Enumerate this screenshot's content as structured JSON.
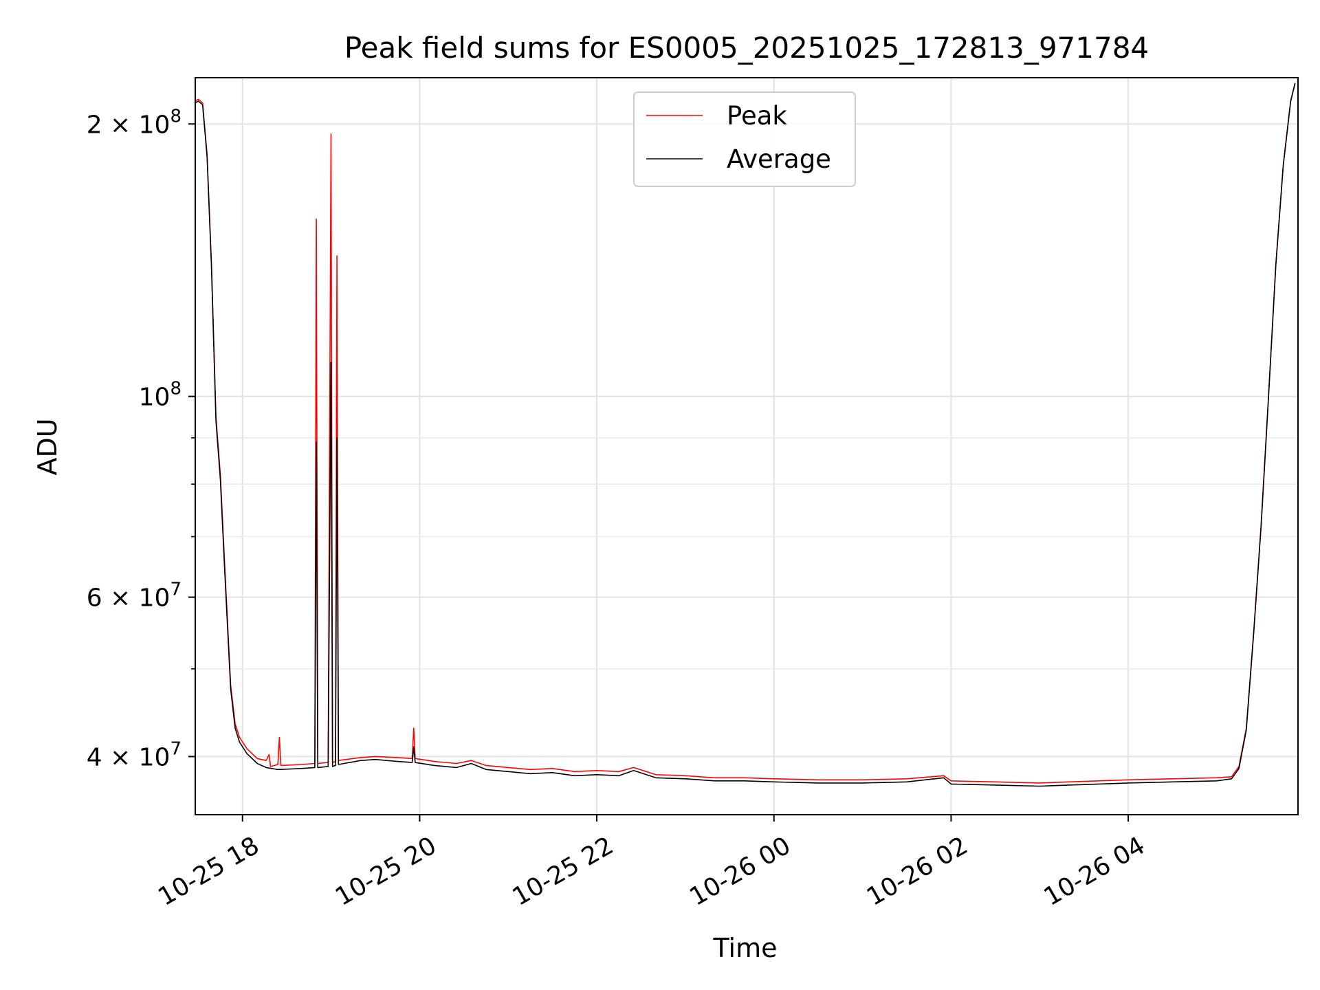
{
  "chart_data": {
    "type": "line",
    "title": "Peak field sums for ES0005_20251025_172813_971784",
    "xlabel": "Time",
    "ylabel": "ADU",
    "y_scale": "log",
    "ylim": [
      34500000,
      225000000
    ],
    "xlim": [
      "2025-10-25 17:28",
      "2025-10-26 05:55"
    ],
    "grid": true,
    "legend": {
      "position": "top-center",
      "entries": [
        "Peak",
        "Average"
      ]
    },
    "x_ticks": [
      {
        "label": "10-25 18",
        "value": "2025-10-25 18:00"
      },
      {
        "label": "10-25 20",
        "value": "2025-10-25 20:00"
      },
      {
        "label": "10-25 22",
        "value": "2025-10-25 22:00"
      },
      {
        "label": "10-26 00",
        "value": "2025-10-26 00:00"
      },
      {
        "label": "10-26 02",
        "value": "2025-10-26 02:00"
      },
      {
        "label": "10-26 04",
        "value": "2025-10-26 04:00"
      }
    ],
    "y_ticks": [
      {
        "base": "2 × 10",
        "exp": "8",
        "value": 200000000
      },
      {
        "base": "10",
        "exp": "8",
        "value": 100000000
      },
      {
        "base": "6 × 10",
        "exp": "7",
        "value": 60000000
      },
      {
        "base": "4 × 10",
        "exp": "7",
        "value": 40000000
      }
    ],
    "y_minor_ticks": [
      50000000,
      70000000,
      80000000,
      90000000,
      300000000
    ],
    "series": [
      {
        "name": "Peak",
        "color": "#ff0000",
        "points": [
          [
            "2025-10-25 17:28",
            212000000
          ],
          [
            "2025-10-25 17:30",
            213000000
          ],
          [
            "2025-10-25 17:33",
            211000000
          ],
          [
            "2025-10-25 17:36",
            185000000
          ],
          [
            "2025-10-25 17:39",
            140000000
          ],
          [
            "2025-10-25 17:42",
            95000000
          ],
          [
            "2025-10-25 17:45",
            82000000
          ],
          [
            "2025-10-25 17:48",
            65000000
          ],
          [
            "2025-10-25 17:52",
            48000000
          ],
          [
            "2025-10-25 17:55",
            43500000
          ],
          [
            "2025-10-25 17:58",
            42000000
          ],
          [
            "2025-10-25 18:03",
            40800000
          ],
          [
            "2025-10-25 18:10",
            39800000
          ],
          [
            "2025-10-25 18:16",
            39600000
          ],
          [
            "2025-10-25 18:18",
            40200000
          ],
          [
            "2025-10-25 18:19",
            39000000
          ],
          [
            "2025-10-25 18:24",
            39200000
          ],
          [
            "2025-10-25 18:25",
            42000000
          ],
          [
            "2025-10-25 18:26",
            39100000
          ],
          [
            "2025-10-25 18:40",
            39200000
          ],
          [
            "2025-10-25 18:49",
            39300000
          ],
          [
            "2025-10-25 18:50",
            157000000
          ],
          [
            "2025-10-25 18:51",
            39300000
          ],
          [
            "2025-10-25 18:58",
            39400000
          ],
          [
            "2025-10-25 19:00",
            195000000
          ],
          [
            "2025-10-25 19:01",
            39400000
          ],
          [
            "2025-10-25 19:03",
            39500000
          ],
          [
            "2025-10-25 19:04",
            143000000
          ],
          [
            "2025-10-25 19:05",
            39600000
          ],
          [
            "2025-10-25 19:20",
            39900000
          ],
          [
            "2025-10-25 19:30",
            40000000
          ],
          [
            "2025-10-25 19:45",
            39900000
          ],
          [
            "2025-10-25 19:55",
            39800000
          ],
          [
            "2025-10-25 19:56",
            43000000
          ],
          [
            "2025-10-25 19:57",
            39800000
          ],
          [
            "2025-10-25 20:10",
            39500000
          ],
          [
            "2025-10-25 20:25",
            39300000
          ],
          [
            "2025-10-25 20:35",
            39600000
          ],
          [
            "2025-10-25 20:45",
            39100000
          ],
          [
            "2025-10-25 21:00",
            38900000
          ],
          [
            "2025-10-25 21:15",
            38700000
          ],
          [
            "2025-10-25 21:30",
            38800000
          ],
          [
            "2025-10-25 21:45",
            38500000
          ],
          [
            "2025-10-25 22:00",
            38600000
          ],
          [
            "2025-10-25 22:15",
            38500000
          ],
          [
            "2025-10-25 22:25",
            38900000
          ],
          [
            "2025-10-25 22:40",
            38200000
          ],
          [
            "2025-10-25 23:00",
            38100000
          ],
          [
            "2025-10-25 23:20",
            37900000
          ],
          [
            "2025-10-25 23:40",
            37900000
          ],
          [
            "2025-10-26 00:00",
            37800000
          ],
          [
            "2025-10-26 00:30",
            37700000
          ],
          [
            "2025-10-26 01:00",
            37700000
          ],
          [
            "2025-10-26 01:30",
            37800000
          ],
          [
            "2025-10-26 01:55",
            38100000
          ],
          [
            "2025-10-26 02:00",
            37600000
          ],
          [
            "2025-10-26 02:30",
            37500000
          ],
          [
            "2025-10-26 03:00",
            37400000
          ],
          [
            "2025-10-26 03:20",
            37500000
          ],
          [
            "2025-10-26 03:40",
            37600000
          ],
          [
            "2025-10-26 04:00",
            37700000
          ],
          [
            "2025-10-26 04:30",
            37800000
          ],
          [
            "2025-10-26 05:00",
            37900000
          ],
          [
            "2025-10-26 05:10",
            38000000
          ],
          [
            "2025-10-26 05:15",
            39000000
          ],
          [
            "2025-10-26 05:20",
            43000000
          ],
          [
            "2025-10-26 05:25",
            55000000
          ],
          [
            "2025-10-26 05:30",
            72000000
          ],
          [
            "2025-10-26 05:35",
            100000000
          ],
          [
            "2025-10-26 05:40",
            140000000
          ],
          [
            "2025-10-26 05:45",
            180000000
          ],
          [
            "2025-10-26 05:50",
            212000000
          ],
          [
            "2025-10-26 05:53",
            222000000
          ]
        ]
      },
      {
        "name": "Average",
        "color": "#000000",
        "points": [
          [
            "2025-10-25 17:28",
            211000000
          ],
          [
            "2025-10-25 17:30",
            212000000
          ],
          [
            "2025-10-25 17:33",
            210000000
          ],
          [
            "2025-10-25 17:36",
            184000000
          ],
          [
            "2025-10-25 17:39",
            139000000
          ],
          [
            "2025-10-25 17:42",
            94000000
          ],
          [
            "2025-10-25 17:45",
            81000000
          ],
          [
            "2025-10-25 17:48",
            64000000
          ],
          [
            "2025-10-25 17:52",
            47500000
          ],
          [
            "2025-10-25 17:55",
            43000000
          ],
          [
            "2025-10-25 17:58",
            41500000
          ],
          [
            "2025-10-25 18:03",
            40300000
          ],
          [
            "2025-10-25 18:10",
            39300000
          ],
          [
            "2025-10-25 18:16",
            38900000
          ],
          [
            "2025-10-25 18:24",
            38700000
          ],
          [
            "2025-10-25 18:40",
            38800000
          ],
          [
            "2025-10-25 18:49",
            38900000
          ],
          [
            "2025-10-25 18:50",
            89000000
          ],
          [
            "2025-10-25 18:51",
            38900000
          ],
          [
            "2025-10-25 18:58",
            39000000
          ],
          [
            "2025-10-25 19:00",
            109000000
          ],
          [
            "2025-10-25 19:01",
            39000000
          ],
          [
            "2025-10-25 19:03",
            39100000
          ],
          [
            "2025-10-25 19:04",
            90000000
          ],
          [
            "2025-10-25 19:05",
            39200000
          ],
          [
            "2025-10-25 19:20",
            39600000
          ],
          [
            "2025-10-25 19:30",
            39700000
          ],
          [
            "2025-10-25 19:45",
            39500000
          ],
          [
            "2025-10-25 19:55",
            39400000
          ],
          [
            "2025-10-25 19:56",
            41000000
          ],
          [
            "2025-10-25 19:57",
            39400000
          ],
          [
            "2025-10-25 20:10",
            39100000
          ],
          [
            "2025-10-25 20:25",
            38900000
          ],
          [
            "2025-10-25 20:35",
            39300000
          ],
          [
            "2025-10-25 20:45",
            38700000
          ],
          [
            "2025-10-25 21:00",
            38500000
          ],
          [
            "2025-10-25 21:15",
            38300000
          ],
          [
            "2025-10-25 21:30",
            38400000
          ],
          [
            "2025-10-25 21:45",
            38100000
          ],
          [
            "2025-10-25 22:00",
            38200000
          ],
          [
            "2025-10-25 22:15",
            38100000
          ],
          [
            "2025-10-25 22:25",
            38600000
          ],
          [
            "2025-10-25 22:40",
            37900000
          ],
          [
            "2025-10-25 23:00",
            37800000
          ],
          [
            "2025-10-25 23:20",
            37600000
          ],
          [
            "2025-10-25 23:40",
            37600000
          ],
          [
            "2025-10-26 00:00",
            37500000
          ],
          [
            "2025-10-26 00:30",
            37400000
          ],
          [
            "2025-10-26 01:00",
            37400000
          ],
          [
            "2025-10-26 01:30",
            37500000
          ],
          [
            "2025-10-26 01:55",
            37900000
          ],
          [
            "2025-10-26 02:00",
            37300000
          ],
          [
            "2025-10-26 02:30",
            37200000
          ],
          [
            "2025-10-26 03:00",
            37100000
          ],
          [
            "2025-10-26 03:20",
            37200000
          ],
          [
            "2025-10-26 03:40",
            37300000
          ],
          [
            "2025-10-26 04:00",
            37400000
          ],
          [
            "2025-10-26 04:30",
            37500000
          ],
          [
            "2025-10-26 05:00",
            37600000
          ],
          [
            "2025-10-26 05:10",
            37800000
          ],
          [
            "2025-10-26 05:15",
            38800000
          ],
          [
            "2025-10-26 05:20",
            42800000
          ],
          [
            "2025-10-26 05:25",
            54800000
          ],
          [
            "2025-10-26 05:30",
            71800000
          ],
          [
            "2025-10-26 05:35",
            99800000
          ],
          [
            "2025-10-26 05:40",
            139800000
          ],
          [
            "2025-10-26 05:45",
            179800000
          ],
          [
            "2025-10-26 05:50",
            211800000
          ],
          [
            "2025-10-26 05:53",
            221800000
          ]
        ]
      }
    ]
  }
}
